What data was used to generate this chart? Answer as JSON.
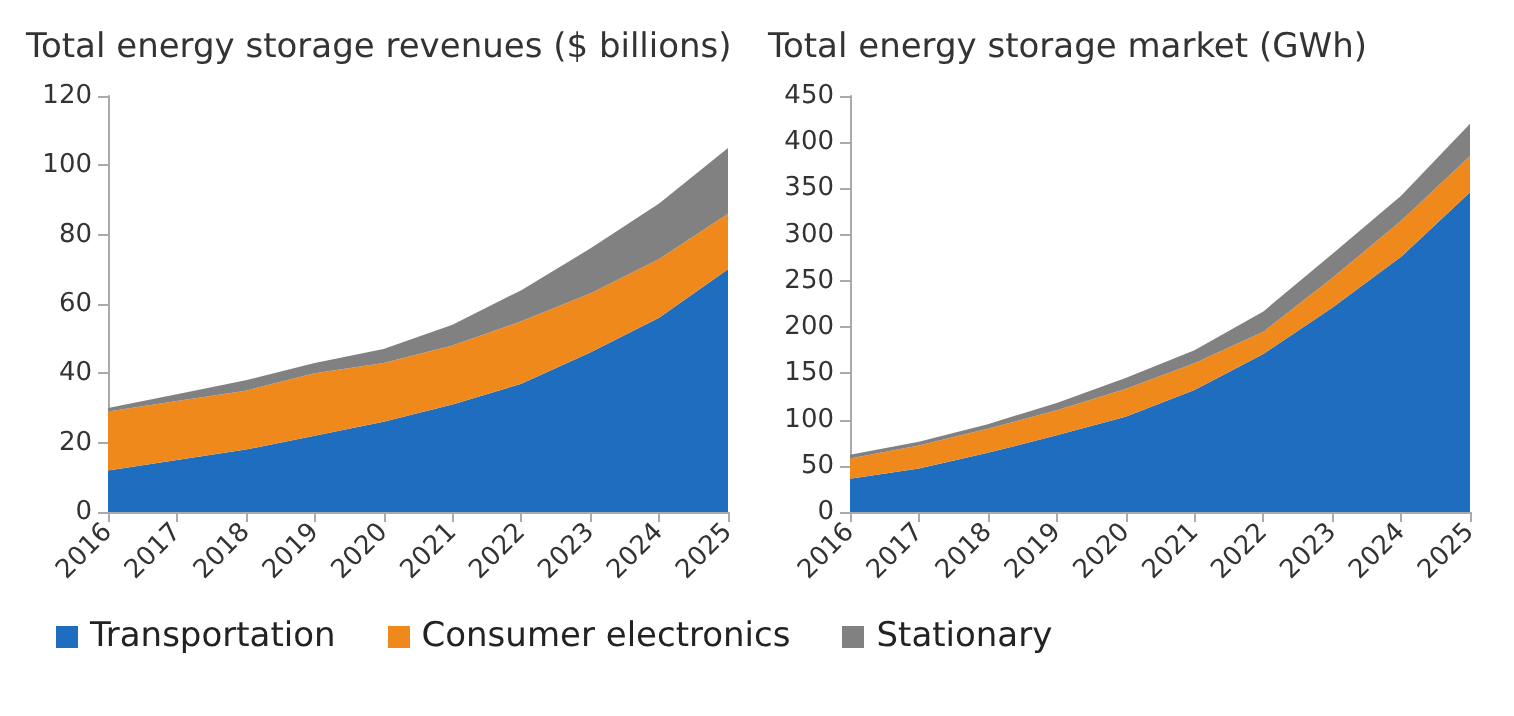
{
  "chart_data": [
    {
      "type": "area",
      "title": "Total energy storage revenues ($ billions)",
      "stacked": true,
      "grid": false,
      "legend": "bottom",
      "categories": [
        "2016",
        "2017",
        "2018",
        "2019",
        "2020",
        "2021",
        "2022",
        "2023",
        "2024",
        "2025"
      ],
      "ylim": [
        0,
        120
      ],
      "yticks": [
        0,
        20,
        40,
        60,
        80,
        100,
        120
      ],
      "series": [
        {
          "name": "Transportation",
          "color": "#1f6dbf",
          "values": [
            12,
            15,
            18,
            22,
            26,
            31,
            37,
            46,
            56,
            70
          ]
        },
        {
          "name": "Consumer electronics",
          "color": "#f0891b",
          "values": [
            17,
            17,
            17,
            18,
            17,
            17,
            18,
            17,
            17,
            16
          ]
        },
        {
          "name": "Stationary",
          "color": "#818181",
          "values": [
            1,
            2,
            3,
            3,
            4,
            6,
            9,
            13,
            16,
            19
          ]
        }
      ]
    },
    {
      "type": "area",
      "title": "Total energy storage market (GWh)",
      "stacked": true,
      "grid": false,
      "legend": "bottom",
      "categories": [
        "2016",
        "2017",
        "2018",
        "2019",
        "2020",
        "2021",
        "2022",
        "2023",
        "2024",
        "2025"
      ],
      "ylim": [
        0,
        450
      ],
      "yticks": [
        0,
        50,
        100,
        150,
        200,
        250,
        300,
        350,
        400,
        450
      ],
      "series": [
        {
          "name": "Transportation",
          "color": "#1f6dbf",
          "values": [
            36,
            47,
            64,
            83,
            103,
            132,
            171,
            221,
            276,
            346
          ]
        },
        {
          "name": "Consumer electronics",
          "color": "#f0891b",
          "values": [
            22,
            25,
            26,
            27,
            30,
            29,
            24,
            32,
            39,
            39
          ]
        },
        {
          "name": "Stationary",
          "color": "#818181",
          "values": [
            4,
            4,
            5,
            8,
            12,
            14,
            22,
            26,
            27,
            35
          ]
        }
      ]
    }
  ]
}
